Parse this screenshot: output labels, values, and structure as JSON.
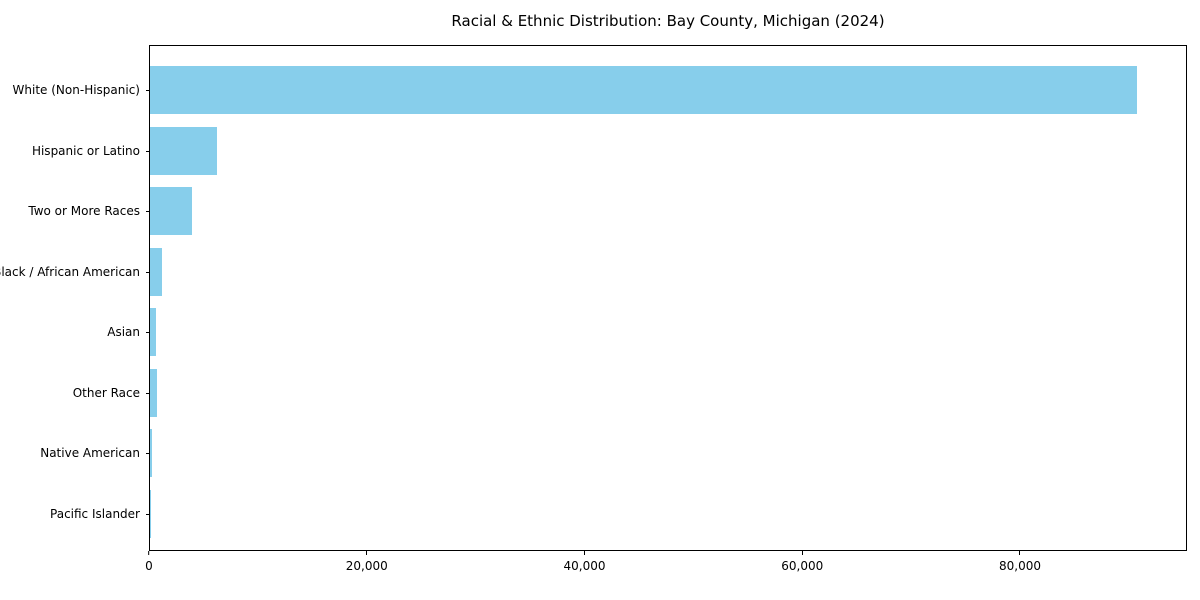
{
  "title": "Racial & Ethnic Distribution: Bay County, Michigan (2024)",
  "chart_data": {
    "type": "bar",
    "orientation": "horizontal",
    "title": "Racial & Ethnic Distribution: Bay County, Michigan (2024)",
    "xlabel": "",
    "ylabel": "",
    "categories": [
      "White (Non-Hispanic)",
      "Hispanic or Latino",
      "Two or More Races",
      "Black / African American",
      "Asian",
      "Other Race",
      "Native American",
      "Pacific Islander"
    ],
    "values": [
      90800,
      6200,
      3900,
      1100,
      550,
      650,
      200,
      30
    ],
    "xlim": [
      0,
      95340
    ],
    "xticks": [
      0,
      20000,
      40000,
      60000,
      80000
    ],
    "xtick_labels": [
      "0",
      "20,000",
      "40,000",
      "60,000",
      "80,000"
    ],
    "bar_color": "#87ceeb",
    "grid": false,
    "legend": null
  }
}
